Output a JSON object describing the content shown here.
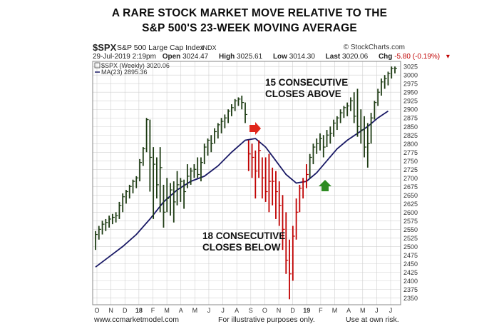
{
  "titles": {
    "line1": "A RARE STOCK MARKET MOVE RELATIVE TO THE",
    "line2": "S&P 500'S 23-WEEK MOVING AVERAGE"
  },
  "header": {
    "symbol": "$SPX",
    "description": "S&P 500 Large Cap Index",
    "exchange": "INDX",
    "brand": "© StockCharts.com",
    "date": "29-Jul-2019 2:19pm",
    "open_label": "Open",
    "open": "3024.47",
    "high_label": "High",
    "high": "3025.61",
    "low_label": "Low",
    "low": "3014.30",
    "last_label": "Last",
    "last": "3020.06",
    "chg_label": "Chg",
    "chg": "-5.80 (-0.19%)"
  },
  "legend": {
    "series1": "$SPX (Weekly) 3020.06",
    "series2": "MA(23) 2895.36"
  },
  "annotations": {
    "above": [
      "15 CONSECUTIVE",
      "CLOSES ABOVE"
    ],
    "below": [
      "18 CONSECUTIVE",
      "CLOSES BELOW"
    ]
  },
  "footer": {
    "left": "www.ccmarketmodel.com",
    "center": "For illustrative purposes only.",
    "right": "Use at own risk."
  },
  "colors": {
    "up": "#1e3c14",
    "down": "#c00000",
    "ma": "#1a1a66",
    "grid": "#d0d0d0",
    "arrow_red": "#e0261b",
    "arrow_green": "#2e8b22"
  },
  "chart_data": {
    "type": "ohlc",
    "ylim": [
      2330,
      3040
    ],
    "yticks": [
      2350,
      2375,
      2400,
      2425,
      2450,
      2475,
      2500,
      2525,
      2550,
      2575,
      2600,
      2625,
      2650,
      2675,
      2700,
      2725,
      2750,
      2775,
      2800,
      2825,
      2850,
      2875,
      2900,
      2925,
      2950,
      2975,
      3000,
      3025
    ],
    "xticks": [
      "O",
      "N",
      "D",
      "18",
      "F",
      "M",
      "A",
      "M",
      "J",
      "J",
      "A",
      "S",
      "O",
      "N",
      "D",
      "19",
      "F",
      "M",
      "A",
      "M",
      "J",
      "J"
    ],
    "weekly_bars": [
      {
        "high": 2545,
        "low": 2490,
        "close": 2535,
        "up": true
      },
      {
        "high": 2560,
        "low": 2520,
        "close": 2550,
        "up": true
      },
      {
        "high": 2575,
        "low": 2535,
        "close": 2565,
        "up": true
      },
      {
        "high": 2580,
        "low": 2545,
        "close": 2570,
        "up": true
      },
      {
        "high": 2590,
        "low": 2555,
        "close": 2580,
        "up": true
      },
      {
        "high": 2595,
        "low": 2565,
        "close": 2585,
        "up": true
      },
      {
        "high": 2600,
        "low": 2570,
        "close": 2590,
        "up": true
      },
      {
        "high": 2630,
        "low": 2580,
        "close": 2620,
        "up": true
      },
      {
        "high": 2655,
        "low": 2600,
        "close": 2645,
        "up": true
      },
      {
        "high": 2665,
        "low": 2625,
        "close": 2660,
        "up": true
      },
      {
        "high": 2680,
        "low": 2640,
        "close": 2675,
        "up": true
      },
      {
        "high": 2695,
        "low": 2655,
        "close": 2690,
        "up": true
      },
      {
        "high": 2705,
        "low": 2670,
        "close": 2700,
        "up": true
      },
      {
        "high": 2755,
        "low": 2690,
        "close": 2745,
        "up": true
      },
      {
        "high": 2790,
        "low": 2735,
        "close": 2785,
        "up": true
      },
      {
        "high": 2875,
        "low": 2775,
        "close": 2870,
        "up": true
      },
      {
        "high": 2870,
        "low": 2660,
        "close": 2760,
        "up": true
      },
      {
        "high": 2790,
        "low": 2580,
        "close": 2740,
        "up": true
      },
      {
        "high": 2760,
        "low": 2640,
        "close": 2680,
        "up": true
      },
      {
        "high": 2790,
        "low": 2600,
        "close": 2730,
        "up": true
      },
      {
        "high": 2680,
        "low": 2555,
        "close": 2600,
        "up": true
      },
      {
        "high": 2700,
        "low": 2600,
        "close": 2640,
        "up": true
      },
      {
        "high": 2685,
        "low": 2590,
        "close": 2665,
        "up": true
      },
      {
        "high": 2690,
        "low": 2570,
        "close": 2630,
        "up": true
      },
      {
        "high": 2720,
        "low": 2620,
        "close": 2680,
        "up": true
      },
      {
        "high": 2700,
        "low": 2630,
        "close": 2690,
        "up": true
      },
      {
        "high": 2695,
        "low": 2610,
        "close": 2660,
        "up": true
      },
      {
        "high": 2740,
        "low": 2670,
        "close": 2705,
        "up": true
      },
      {
        "high": 2730,
        "low": 2680,
        "close": 2720,
        "up": true
      },
      {
        "high": 2740,
        "low": 2700,
        "close": 2725,
        "up": true
      },
      {
        "high": 2760,
        "low": 2700,
        "close": 2710,
        "up": true
      },
      {
        "high": 2760,
        "low": 2690,
        "close": 2745,
        "up": true
      },
      {
        "high": 2800,
        "low": 2740,
        "close": 2790,
        "up": true
      },
      {
        "high": 2815,
        "low": 2765,
        "close": 2810,
        "up": true
      },
      {
        "high": 2825,
        "low": 2775,
        "close": 2800,
        "up": true
      },
      {
        "high": 2845,
        "low": 2800,
        "close": 2835,
        "up": true
      },
      {
        "high": 2860,
        "low": 2815,
        "close": 2855,
        "up": true
      },
      {
        "high": 2875,
        "low": 2830,
        "close": 2865,
        "up": true
      },
      {
        "high": 2885,
        "low": 2845,
        "close": 2875,
        "up": true
      },
      {
        "high": 2900,
        "low": 2860,
        "close": 2895,
        "up": true
      },
      {
        "high": 2915,
        "low": 2880,
        "close": 2905,
        "up": true
      },
      {
        "high": 2930,
        "low": 2895,
        "close": 2925,
        "up": true
      },
      {
        "high": 2935,
        "low": 2910,
        "close": 2930,
        "up": true
      },
      {
        "high": 2940,
        "low": 2900,
        "close": 2920,
        "up": true
      },
      {
        "high": 2920,
        "low": 2860,
        "close": 2885,
        "up": true
      },
      {
        "high": 2810,
        "low": 2720,
        "close": 2770,
        "up": false
      },
      {
        "high": 2800,
        "low": 2700,
        "close": 2760,
        "up": false
      },
      {
        "high": 2780,
        "low": 2640,
        "close": 2720,
        "up": false
      },
      {
        "high": 2810,
        "low": 2700,
        "close": 2780,
        "up": false
      },
      {
        "high": 2760,
        "low": 2640,
        "close": 2700,
        "up": false
      },
      {
        "high": 2760,
        "low": 2630,
        "close": 2660,
        "up": false
      },
      {
        "high": 2770,
        "low": 2600,
        "close": 2690,
        "up": false
      },
      {
        "high": 2730,
        "low": 2620,
        "close": 2690,
        "up": false
      },
      {
        "high": 2720,
        "low": 2580,
        "close": 2660,
        "up": false
      },
      {
        "high": 2690,
        "low": 2560,
        "close": 2620,
        "up": false
      },
      {
        "high": 2650,
        "low": 2490,
        "close": 2550,
        "up": false
      },
      {
        "high": 2600,
        "low": 2420,
        "close": 2460,
        "up": false
      },
      {
        "high": 2520,
        "low": 2346,
        "close": 2420,
        "up": false
      },
      {
        "high": 2560,
        "low": 2400,
        "close": 2530,
        "up": false
      },
      {
        "high": 2640,
        "low": 2520,
        "close": 2600,
        "up": false
      },
      {
        "high": 2680,
        "low": 2600,
        "close": 2670,
        "up": false
      },
      {
        "high": 2700,
        "low": 2640,
        "close": 2690,
        "up": false
      },
      {
        "high": 2740,
        "low": 2670,
        "close": 2710,
        "up": false
      },
      {
        "high": 2770,
        "low": 2700,
        "close": 2760,
        "up": true
      },
      {
        "high": 2800,
        "low": 2740,
        "close": 2790,
        "up": true
      },
      {
        "high": 2815,
        "low": 2770,
        "close": 2800,
        "up": true
      },
      {
        "high": 2830,
        "low": 2780,
        "close": 2815,
        "up": true
      },
      {
        "high": 2825,
        "low": 2760,
        "close": 2790,
        "up": true
      },
      {
        "high": 2840,
        "low": 2790,
        "close": 2825,
        "up": true
      },
      {
        "high": 2850,
        "low": 2800,
        "close": 2830,
        "up": true
      },
      {
        "high": 2870,
        "low": 2820,
        "close": 2860,
        "up": true
      },
      {
        "high": 2880,
        "low": 2840,
        "close": 2875,
        "up": true
      },
      {
        "high": 2900,
        "low": 2860,
        "close": 2890,
        "up": true
      },
      {
        "high": 2910,
        "low": 2875,
        "close": 2905,
        "up": true
      },
      {
        "high": 2920,
        "low": 2880,
        "close": 2910,
        "up": true
      },
      {
        "high": 2935,
        "low": 2895,
        "close": 2925,
        "up": true
      },
      {
        "high": 2950,
        "low": 2860,
        "close": 2880,
        "up": true
      },
      {
        "high": 2960,
        "low": 2820,
        "close": 2850,
        "up": true
      },
      {
        "high": 2900,
        "low": 2800,
        "close": 2840,
        "up": true
      },
      {
        "high": 2880,
        "low": 2760,
        "close": 2790,
        "up": true
      },
      {
        "high": 2860,
        "low": 2730,
        "close": 2800,
        "up": true
      },
      {
        "high": 2890,
        "low": 2800,
        "close": 2875,
        "up": true
      },
      {
        "high": 2925,
        "low": 2870,
        "close": 2920,
        "up": true
      },
      {
        "high": 2960,
        "low": 2910,
        "close": 2950,
        "up": true
      },
      {
        "high": 2990,
        "low": 2940,
        "close": 2980,
        "up": true
      },
      {
        "high": 3000,
        "low": 2960,
        "close": 2990,
        "up": true
      },
      {
        "high": 3010,
        "low": 2970,
        "close": 3005,
        "up": true
      },
      {
        "high": 3025,
        "low": 2990,
        "close": 3020,
        "up": true
      },
      {
        "high": 3025,
        "low": 3005,
        "close": 3020,
        "up": true
      }
    ],
    "ma23": [
      [
        0,
        2440
      ],
      [
        4,
        2470
      ],
      [
        8,
        2500
      ],
      [
        12,
        2535
      ],
      [
        16,
        2580
      ],
      [
        20,
        2630
      ],
      [
        24,
        2665
      ],
      [
        28,
        2690
      ],
      [
        32,
        2705
      ],
      [
        36,
        2735
      ],
      [
        40,
        2775
      ],
      [
        44,
        2810
      ],
      [
        47,
        2815
      ],
      [
        50,
        2790
      ],
      [
        53,
        2750
      ],
      [
        56,
        2710
      ],
      [
        59,
        2685
      ],
      [
        62,
        2690
      ],
      [
        65,
        2715
      ],
      [
        68,
        2750
      ],
      [
        71,
        2785
      ],
      [
        74,
        2810
      ],
      [
        77,
        2830
      ],
      [
        80,
        2850
      ],
      [
        83,
        2875
      ],
      [
        86,
        2895
      ]
    ]
  }
}
